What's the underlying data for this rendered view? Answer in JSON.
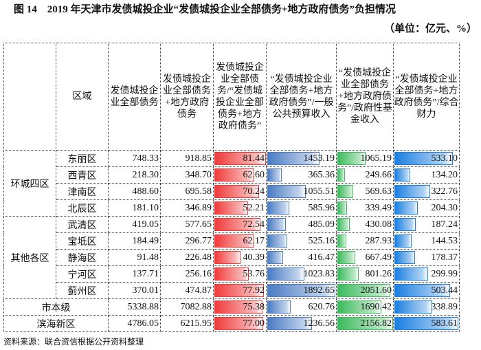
{
  "title": "图 14　2019 年天津市发债城投企业“发债城投企业全部债务+地方政府债务”负担情况",
  "unit": "（单位：亿元、%）",
  "headers": [
    "区域",
    "发债城投企业全部债务",
    "发债城投企业全部债务+地方政府债务",
    "发债城投企业全部债务/“发债城投企业全部债务+地方政府债务”",
    "“发债城投企业全部债务+地方政府债务”/一般公共预算收入",
    "“发债城投企业全部债务+地方政府债务”/政府性基金收入",
    "“发债城投企业全部债务+地方政府债务”/综合财力"
  ],
  "groups": [
    "环城四区",
    "其他各区"
  ],
  "bar_colors": [
    "#f03a3a",
    "#4a7cc4",
    "#3cba5c",
    "#1a7fe0"
  ],
  "rows": [
    {
      "name": "东丽区",
      "v": [
        "748.33",
        "918.85",
        "81.44",
        "1453.19",
        "1065.19",
        "533.10"
      ]
    },
    {
      "name": "西青区",
      "v": [
        "218.30",
        "348.70",
        "62.60",
        "365.36",
        "249.66",
        "134.20"
      ]
    },
    {
      "name": "津南区",
      "v": [
        "488.60",
        "695.58",
        "70.24",
        "1055.51",
        "569.63",
        "322.76"
      ]
    },
    {
      "name": "北辰区",
      "v": [
        "181.10",
        "346.89",
        "52.21",
        "585.96",
        "339.49",
        "204.30"
      ]
    },
    {
      "name": "武清区",
      "v": [
        "419.05",
        "577.65",
        "72.54",
        "485.09",
        "430.08",
        "187.24"
      ]
    },
    {
      "name": "宝坻区",
      "v": [
        "184.49",
        "296.77",
        "62.17",
        "525.16",
        "287.93",
        "144.53"
      ]
    },
    {
      "name": "静海区",
      "v": [
        "91.48",
        "226.48",
        "40.39",
        "416.47",
        "667.49",
        "178.37"
      ]
    },
    {
      "name": "宁河区",
      "v": [
        "137.71",
        "256.16",
        "53.76",
        "1023.83",
        "801.26",
        "299.99"
      ]
    },
    {
      "name": "蓟州区",
      "v": [
        "370.01",
        "474.87",
        "77.92",
        "1892.65",
        "2051.60",
        "503.44"
      ]
    },
    {
      "name": "市本级",
      "v": [
        "5338.88",
        "7082.88",
        "75.38",
        "620.76",
        "1690.42",
        "338.89"
      ]
    },
    {
      "name": "滨海新区",
      "v": [
        "4786.05",
        "6215.95",
        "77.00",
        "1236.56",
        "2156.82",
        "583.61"
      ]
    }
  ],
  "source": "资料来源：联合资信根据公开资料整理"
}
